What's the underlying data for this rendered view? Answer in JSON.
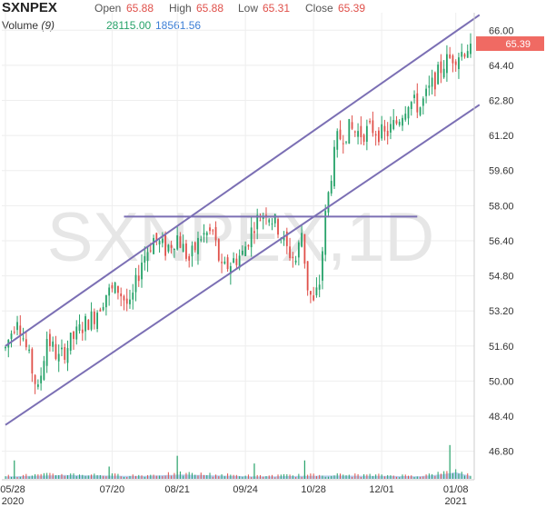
{
  "header": {
    "ticker": "SXNPEX",
    "open_label": "Open",
    "open_value": "65.88",
    "high_label": "High",
    "high_value": "65.88",
    "low_label": "Low",
    "low_value": "65.31",
    "close_label": "Close",
    "close_value": "65.39",
    "volume_label": "Volume",
    "volume_period": "(9)",
    "volume_value_1": "28115.00",
    "volume_value_2": "18561.56"
  },
  "watermark": "SXNPEX,1D",
  "colors": {
    "up": "#26a269",
    "down": "#e0504a",
    "trend": "#7b6fb4",
    "volume": "#9fbfe8",
    "price_tag": "#f06a63"
  },
  "chart_data": {
    "type": "candlestick",
    "title": "",
    "xlabel": "",
    "ylabel": "",
    "ylim": [
      45.5,
      66.8
    ],
    "y_ticks": [
      "66.00",
      "64.40",
      "62.80",
      "61.20",
      "59.60",
      "58.00",
      "56.40",
      "54.80",
      "53.20",
      "51.60",
      "50.00",
      "48.40",
      "46.80"
    ],
    "x_ticks": [
      {
        "label": "05/28",
        "sub": "2020"
      },
      {
        "label": "07/20",
        "sub": ""
      },
      {
        "label": "08/21",
        "sub": ""
      },
      {
        "label": "09/24",
        "sub": ""
      },
      {
        "label": "10/28",
        "sub": ""
      },
      {
        "label": "12/01",
        "sub": ""
      },
      {
        "label": "01/08",
        "sub": "2021"
      }
    ],
    "x_tick_index": [
      0,
      36,
      58,
      81,
      104,
      127,
      152
    ],
    "last_price": "65.39",
    "n_bars": 158,
    "anchors": [
      [
        0,
        51.5
      ],
      [
        4,
        53.0
      ],
      [
        8,
        51.0
      ],
      [
        11,
        49.5
      ],
      [
        14,
        52.0
      ],
      [
        18,
        51.0
      ],
      [
        22,
        51.8
      ],
      [
        26,
        52.5
      ],
      [
        30,
        53.0
      ],
      [
        34,
        54.0
      ],
      [
        38,
        54.2
      ],
      [
        42,
        53.3
      ],
      [
        46,
        55.5
      ],
      [
        50,
        56.5
      ],
      [
        54,
        56.0
      ],
      [
        58,
        56.6
      ],
      [
        62,
        55.5
      ],
      [
        66,
        56.6
      ],
      [
        70,
        56.8
      ],
      [
        73,
        55.0
      ],
      [
        77,
        55.5
      ],
      [
        80,
        55.8
      ],
      [
        84,
        57.2
      ],
      [
        88,
        57.8
      ],
      [
        92,
        57.0
      ],
      [
        95,
        56.0
      ],
      [
        98,
        55.5
      ],
      [
        100,
        56.8
      ],
      [
        102,
        54.3
      ],
      [
        104,
        53.5
      ],
      [
        106,
        54.5
      ],
      [
        108,
        57.5
      ],
      [
        110,
        59.5
      ],
      [
        112,
        61.0
      ],
      [
        116,
        61.5
      ],
      [
        120,
        61.3
      ],
      [
        124,
        61.5
      ],
      [
        128,
        61.2
      ],
      [
        132,
        61.8
      ],
      [
        136,
        62.8
      ],
      [
        140,
        62.5
      ],
      [
        144,
        63.5
      ],
      [
        148,
        64.5
      ],
      [
        151,
        64.8
      ],
      [
        154,
        65.0
      ],
      [
        157,
        65.39
      ]
    ],
    "volume_anchors": [
      [
        0,
        1.0
      ],
      [
        20,
        1.6
      ],
      [
        45,
        1.2
      ],
      [
        60,
        1.8
      ],
      [
        85,
        1.0
      ],
      [
        110,
        1.4
      ],
      [
        140,
        1.1
      ],
      [
        148,
        2.0
      ],
      [
        152,
        2.8
      ],
      [
        157,
        1.2
      ]
    ],
    "volume_spikes": [
      [
        3,
        6
      ],
      [
        35,
        4
      ],
      [
        58,
        7.5
      ],
      [
        84,
        5
      ],
      [
        101,
        6
      ],
      [
        150,
        11
      ]
    ],
    "trendlines": [
      {
        "from": [
          0,
          51.6
        ],
        "to": [
          160,
          66.7
        ]
      },
      {
        "from": [
          0,
          48.0
        ],
        "to": [
          160,
          62.6
        ]
      },
      {
        "from": [
          40,
          57.5
        ],
        "to": [
          139,
          57.5
        ]
      }
    ]
  }
}
